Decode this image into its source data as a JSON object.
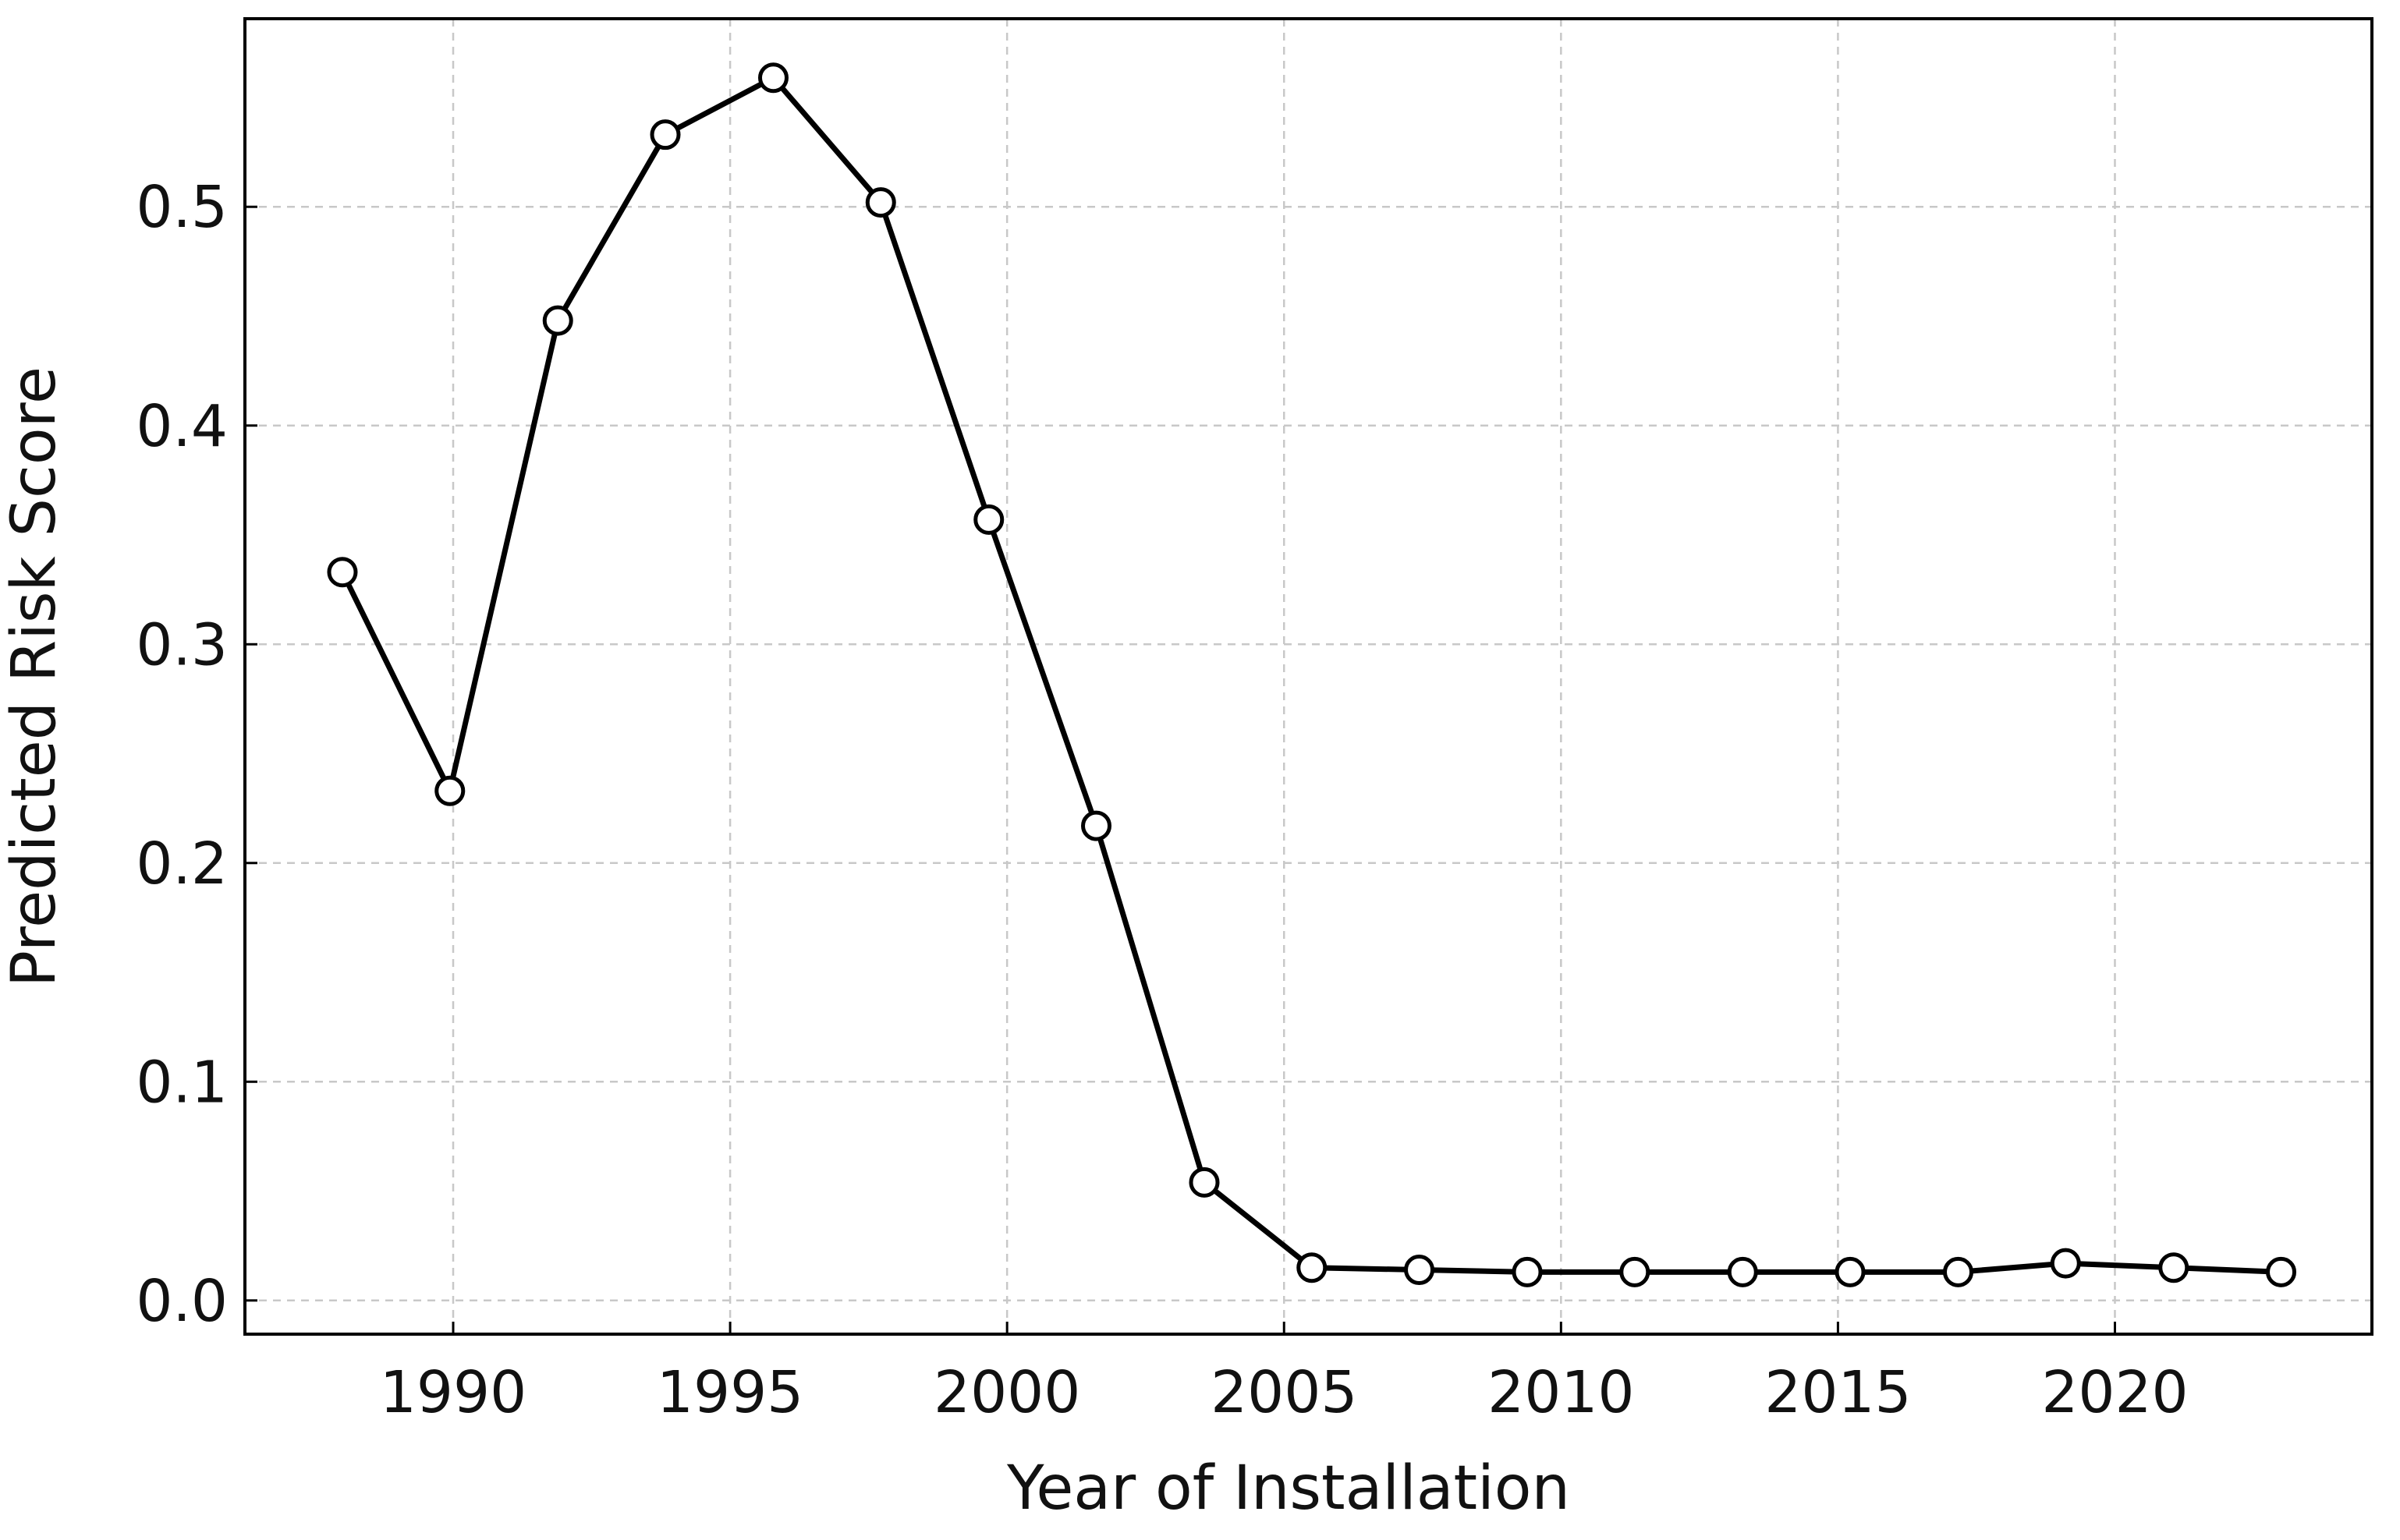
{
  "chart_data": {
    "type": "line",
    "xlabel": "Year of Installation",
    "ylabel": "Predicted Risk Score",
    "x": [
      1988,
      1989.94,
      1991.89,
      1993.83,
      1995.78,
      1997.72,
      1999.67,
      2001.61,
      2003.56,
      2005.5,
      2007.44,
      2009.39,
      2011.33,
      2013.28,
      2015.22,
      2017.17,
      2019.11,
      2021.06,
      2023
    ],
    "series": [
      {
        "name": "Predicted Risk Score",
        "color": "#000000",
        "values": [
          0.333,
          0.233,
          0.448,
          0.533,
          0.559,
          0.502,
          0.357,
          0.217,
          0.054,
          0.015,
          0.014,
          0.013,
          0.013,
          0.013,
          0.013,
          0.013,
          0.017,
          0.015,
          0.013
        ]
      }
    ],
    "xlim": [
      1986.24,
      2024.64
    ],
    "ylim": [
      -0.0154,
      0.586
    ],
    "xticks": [
      1990,
      1995,
      2000,
      2005,
      2010,
      2015,
      2020
    ],
    "yticks": [
      {
        "value": 0,
        "label": "0.0"
      },
      0.1,
      0.2,
      0.3,
      0.4,
      0.5
    ],
    "grid": true
  }
}
